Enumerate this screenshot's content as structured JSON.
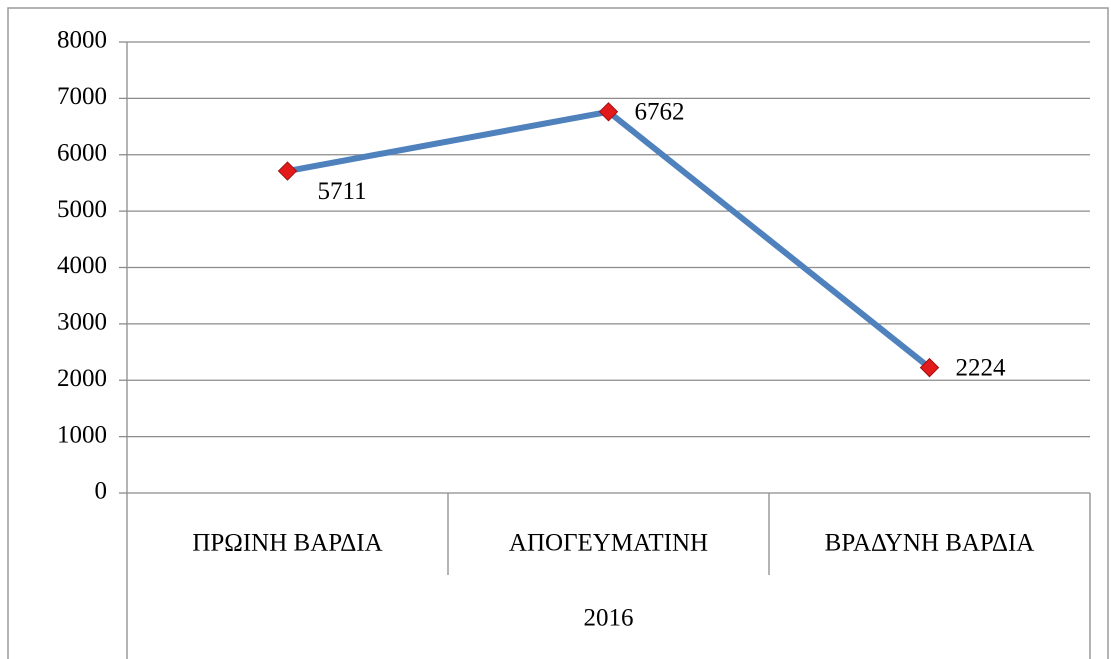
{
  "chart_data": {
    "type": "line",
    "categories": [
      "ΠΡΩΙΝΗ ΒΑΡΔΙΑ",
      "ΑΠΟΓΕΥΜΑΤΙΝΗ",
      "ΒΡΑΔΥΝΗ ΒΑΡΔΙΑ"
    ],
    "x_group": "2016",
    "series": [
      {
        "name": "2016",
        "color": "#4f81bd",
        "marker_color": "#e31a1c",
        "values": [
          5711,
          6762,
          2224
        ]
      }
    ],
    "ylim": [
      0,
      8000
    ],
    "yticks": [
      0,
      1000,
      2000,
      3000,
      4000,
      5000,
      6000,
      7000,
      8000
    ],
    "grid": true,
    "data_labels": true
  }
}
